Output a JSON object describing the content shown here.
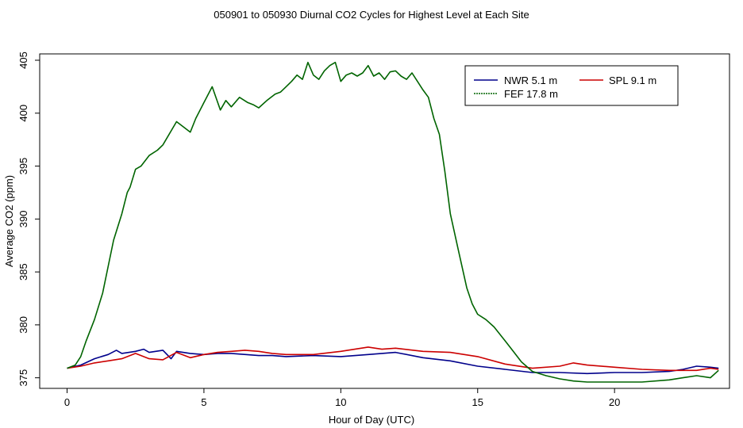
{
  "chart_data": {
    "type": "line",
    "title": "050901  to  050930 Diurnal CO2 Cycles for Highest Level at Each Site",
    "xlabel": "Hour of Day (UTC)",
    "ylabel": "Average CO2 (ppm)",
    "xlim": [
      -1,
      24.2
    ],
    "ylim": [
      374.0,
      405.6
    ],
    "xticks": [
      0,
      5,
      10,
      15,
      20
    ],
    "yticks": [
      375,
      380,
      385,
      390,
      395,
      400,
      405
    ],
    "grid": false,
    "legend": {
      "placement": "top-right",
      "entries": [
        {
          "label": "NWR   5.1 m",
          "series": 0
        },
        {
          "label": "SPL   9.1 m",
          "series": 1
        },
        {
          "label": "FEF   17.8 m",
          "series": 2
        }
      ]
    },
    "series": [
      {
        "name": "NWR   5.1 m",
        "color": "#00008B",
        "x": [
          0,
          0.5,
          1,
          1.5,
          1.8,
          2,
          2.5,
          2.8,
          3,
          3.5,
          3.8,
          4,
          4.5,
          5,
          5.5,
          6,
          7,
          7.5,
          8,
          9,
          10,
          11,
          11.5,
          12,
          13,
          14,
          15,
          16,
          17,
          18,
          19,
          20,
          21,
          22,
          22.5,
          23,
          23.5,
          23.8
        ],
        "y": [
          375.9,
          376.2,
          376.8,
          377.2,
          377.6,
          377.3,
          377.5,
          377.7,
          377.4,
          377.6,
          376.8,
          377.5,
          377.3,
          377.2,
          377.3,
          377.3,
          377.1,
          377.1,
          377.0,
          377.1,
          377.0,
          377.2,
          377.3,
          377.4,
          376.9,
          376.6,
          376.1,
          375.8,
          375.5,
          375.5,
          375.4,
          375.5,
          375.5,
          375.6,
          375.8,
          376.1,
          376.0,
          375.9
        ]
      },
      {
        "name": "SPL   9.1 m",
        "color": "#CC0000",
        "x": [
          0,
          0.5,
          1,
          1.5,
          2,
          2.5,
          3,
          3.5,
          4,
          4.5,
          5,
          5.5,
          6,
          6.5,
          7,
          7.5,
          8,
          9,
          10,
          11,
          11.5,
          12,
          13,
          14,
          15,
          16,
          17,
          18,
          18.5,
          19,
          20,
          21,
          22,
          23,
          23.5,
          23.8
        ],
        "y": [
          375.9,
          376.1,
          376.4,
          376.6,
          376.8,
          377.3,
          376.8,
          376.7,
          377.4,
          376.9,
          377.2,
          377.4,
          377.5,
          377.6,
          377.5,
          377.3,
          377.2,
          377.2,
          377.5,
          377.9,
          377.7,
          377.8,
          377.5,
          377.4,
          377.0,
          376.3,
          375.9,
          376.1,
          376.4,
          376.2,
          376.0,
          375.8,
          375.7,
          375.7,
          375.9,
          375.8
        ]
      },
      {
        "name": "FEF   17.8 m",
        "color": "#006400",
        "x": [
          0,
          0.3,
          0.5,
          0.7,
          1,
          1.3,
          1.5,
          1.7,
          2,
          2.2,
          2.3,
          2.5,
          2.7,
          3,
          3.3,
          3.5,
          4,
          4.2,
          4.5,
          4.7,
          5,
          5.3,
          5.6,
          5.8,
          6,
          6.3,
          6.6,
          6.8,
          7,
          7.3,
          7.6,
          7.8,
          8,
          8.2,
          8.4,
          8.6,
          8.8,
          9,
          9.2,
          9.4,
          9.6,
          9.8,
          10,
          10.2,
          10.4,
          10.6,
          10.8,
          11,
          11.2,
          11.4,
          11.6,
          11.8,
          12,
          12.2,
          12.4,
          12.6,
          12.8,
          13,
          13.2,
          13.4,
          13.6,
          13.8,
          14,
          14.3,
          14.6,
          14.8,
          15,
          15.3,
          15.6,
          16,
          16.3,
          16.6,
          17,
          17.5,
          18,
          18.5,
          19,
          19.5,
          20,
          21,
          22,
          22.5,
          23,
          23.5,
          23.8
        ],
        "y": [
          375.9,
          376.2,
          377.0,
          378.5,
          380.5,
          383.0,
          385.5,
          388.0,
          390.5,
          392.5,
          393.0,
          394.7,
          395.0,
          396.0,
          396.5,
          397.0,
          399.2,
          398.8,
          398.2,
          399.5,
          401.0,
          402.5,
          400.3,
          401.2,
          400.6,
          401.5,
          401.0,
          400.8,
          400.5,
          401.2,
          401.8,
          402.0,
          402.5,
          403.0,
          403.6,
          403.2,
          404.8,
          403.6,
          403.2,
          404.0,
          404.5,
          404.8,
          403.0,
          403.6,
          403.8,
          403.5,
          403.8,
          404.5,
          403.5,
          403.8,
          403.2,
          403.9,
          404.0,
          403.5,
          403.2,
          403.8,
          403.0,
          402.2,
          401.5,
          399.5,
          398.0,
          394.5,
          390.5,
          387.0,
          383.5,
          382.0,
          381.0,
          380.5,
          379.8,
          378.5,
          377.5,
          376.5,
          375.6,
          375.2,
          374.9,
          374.7,
          374.6,
          374.6,
          374.6,
          374.6,
          374.8,
          375.0,
          375.2,
          375.0,
          375.7
        ]
      }
    ]
  }
}
